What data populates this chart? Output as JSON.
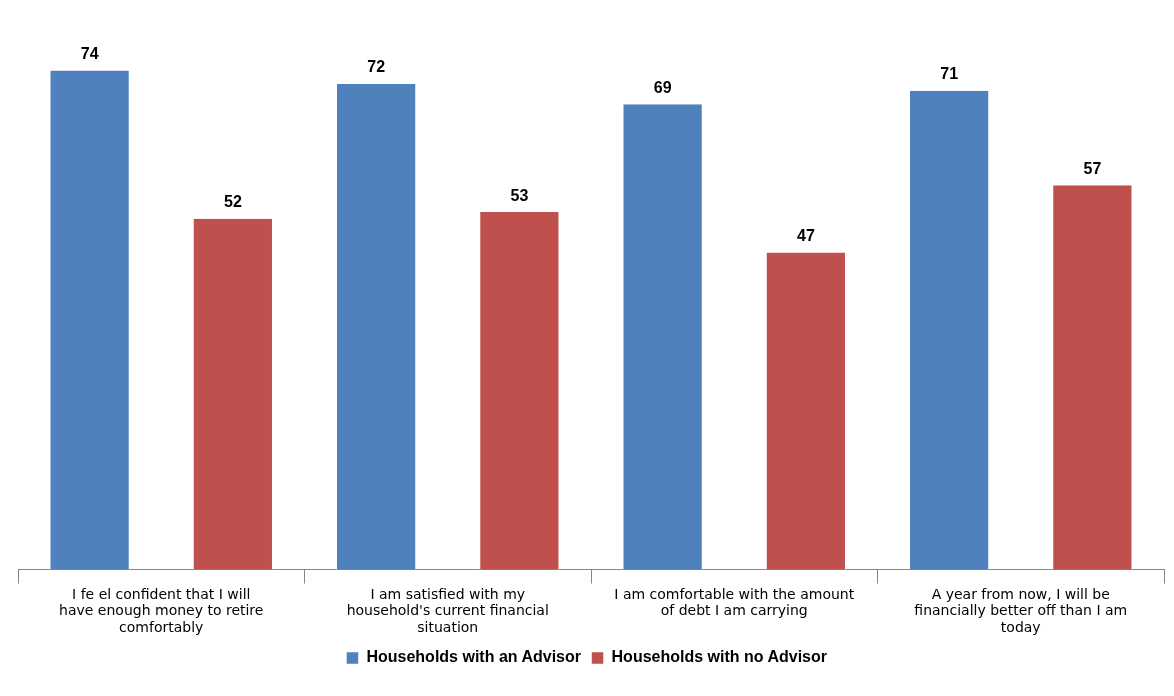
{
  "chart_data": {
    "type": "bar",
    "categories": [
      "I fe el confident that I will have enough money to retire comfortably",
      "I am satisfied with my household's current financial situation",
      "I am comfortable with the amount of debt I am carrying",
      "A year from now, I will be financially better off than I am today"
    ],
    "series": [
      {
        "name": "Households with an Advisor",
        "color": "#4f81bd",
        "values": [
          74,
          72,
          69,
          71
        ]
      },
      {
        "name": "Households with no Advisor",
        "color": "#c0504d",
        "values": [
          52,
          53,
          47,
          57
        ]
      }
    ],
    "relative": false,
    "data_labels": true,
    "legend": "bottom"
  }
}
